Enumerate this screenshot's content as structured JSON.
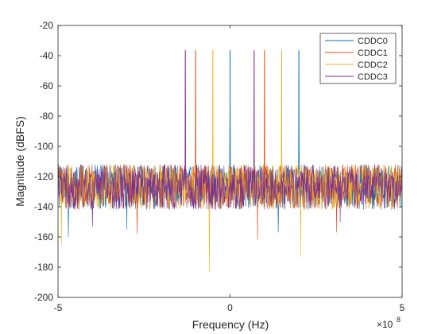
{
  "chart_data": {
    "type": "line",
    "title": "",
    "xlabel": "Frequency (Hz)",
    "ylabel": "Magnitude (dBFS)",
    "x_exponent_base": "×10",
    "x_exponent_power": "8",
    "xlim": [
      -500000000,
      500000000
    ],
    "ylim": [
      -200,
      -20
    ],
    "x_ticks": [
      -500000000,
      0,
      500000000
    ],
    "x_tick_labels": [
      "-5",
      "0",
      "5"
    ],
    "y_ticks": [
      -200,
      -180,
      -160,
      -140,
      -120,
      -100,
      -80,
      -60,
      -40,
      -20
    ],
    "y_tick_labels": [
      "-200",
      "-180",
      "-160",
      "-140",
      "-120",
      "-100",
      "-80",
      "-60",
      "-40",
      "-20"
    ],
    "grid": false,
    "legend_position": "top-right",
    "noise_floor_dbfs": -125,
    "noise_floor_spread_dbfs": [
      -142,
      -112
    ],
    "series": [
      {
        "name": "CDDC0",
        "color": "#0072BD",
        "tones": [
          {
            "x": 0,
            "y": -36.5
          },
          {
            "x": 200000000,
            "y": -36.5
          }
        ],
        "deep_dips": [
          {
            "x": -470000000,
            "y": -160
          },
          {
            "x": -300000000,
            "y": -155
          },
          {
            "x": 140000000,
            "y": -157
          }
        ]
      },
      {
        "name": "CDDC1",
        "color": "#D95319",
        "tones": [
          {
            "x": -100000000,
            "y": -36.5
          },
          {
            "x": 100000000,
            "y": -36.5
          }
        ],
        "deep_dips": [
          {
            "x": -270000000,
            "y": -158
          },
          {
            "x": 80000000,
            "y": -162
          },
          {
            "x": 310000000,
            "y": -157
          }
        ]
      },
      {
        "name": "CDDC2",
        "color": "#EDB120",
        "tones": [
          {
            "x": -50000000,
            "y": -36.5
          },
          {
            "x": 150000000,
            "y": -36.5
          }
        ],
        "deep_dips": [
          {
            "x": -490000000,
            "y": -165
          },
          {
            "x": -60000000,
            "y": -183
          },
          {
            "x": 205000000,
            "y": -173
          }
        ]
      },
      {
        "name": "CDDC3",
        "color": "#7E2F8E",
        "tones": [
          {
            "x": -130000000,
            "y": -36.5
          },
          {
            "x": 70000000,
            "y": -36.5
          }
        ],
        "deep_dips": [
          {
            "x": -400000000,
            "y": -153
          },
          {
            "x": 320000000,
            "y": -150
          }
        ]
      }
    ]
  }
}
